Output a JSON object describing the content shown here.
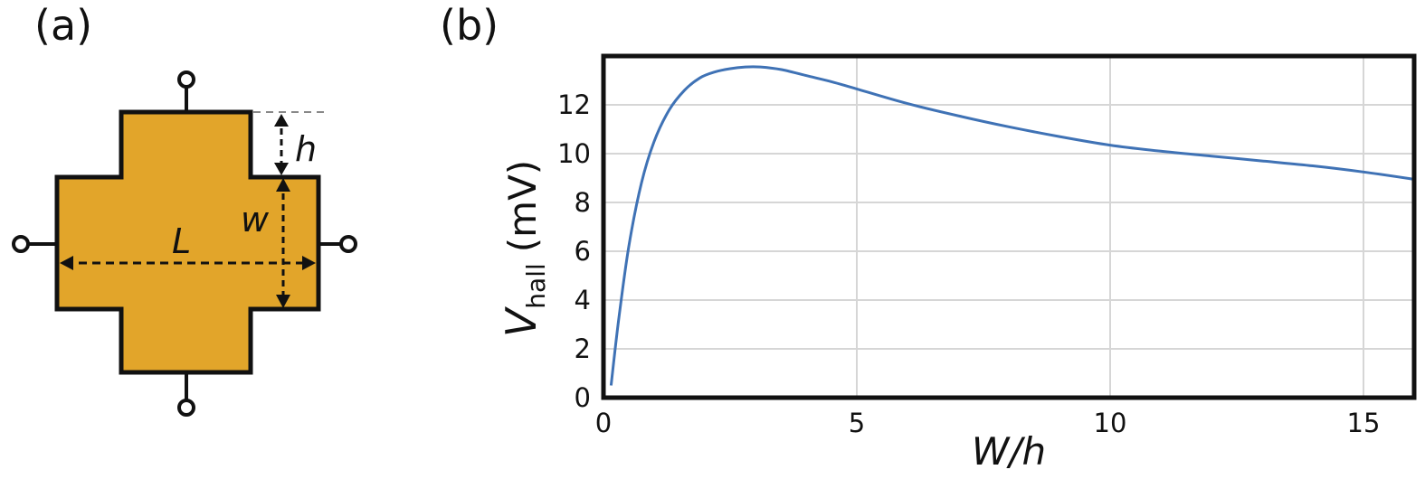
{
  "panels": {
    "a": {
      "label": "(a)",
      "dimension_labels": {
        "h": "h",
        "w": "w",
        "L": "L"
      },
      "colors": {
        "body_fill": "#E2A52A",
        "outline": "#111111"
      }
    },
    "b": {
      "label": "(b)"
    }
  },
  "chart_data": {
    "type": "line",
    "xlabel": "W/h",
    "ylabel": {
      "main": "V",
      "subscript": "hall",
      "unit": "(mV)"
    },
    "xlim": [
      0,
      16
    ],
    "ylim": [
      0,
      14
    ],
    "xticks": [
      0,
      5,
      10,
      15
    ],
    "yticks": [
      0,
      2,
      4,
      6,
      8,
      10,
      12
    ],
    "grid": true,
    "line_color": "#3F72B5",
    "series": [
      {
        "x": [
          0.15,
          0.3,
          0.5,
          0.75,
          1.0,
          1.3,
          1.6,
          1.9,
          2.2,
          2.5,
          2.8,
          3.1,
          3.5,
          4.0,
          4.5,
          5.0,
          6.0,
          7.0,
          8.0,
          9.0,
          10.0,
          11.0,
          12.0,
          13.0,
          14.0,
          15.0,
          16.0
        ],
        "y": [
          0.5,
          3.2,
          6.2,
          8.8,
          10.5,
          11.8,
          12.6,
          13.1,
          13.35,
          13.48,
          13.55,
          13.55,
          13.45,
          13.2,
          12.95,
          12.65,
          12.05,
          11.55,
          11.1,
          10.7,
          10.35,
          10.1,
          9.9,
          9.7,
          9.5,
          9.25,
          8.95
        ]
      }
    ]
  }
}
